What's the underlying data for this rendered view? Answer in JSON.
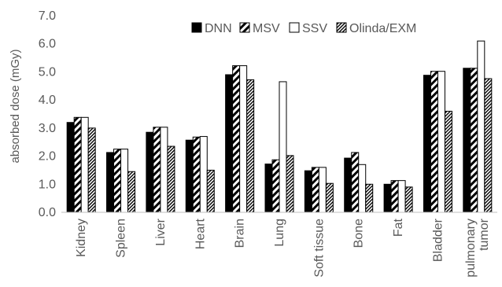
{
  "chart_data": {
    "type": "bar",
    "ylabel": "absorbed dose (mGy)",
    "ylim": [
      0,
      7
    ],
    "yticks": [
      "0.0",
      "1.0",
      "2.0",
      "3.0",
      "4.0",
      "5.0",
      "6.0",
      "7.0"
    ],
    "categories": [
      "Kidney",
      "Spleen",
      "Liver",
      "Heart",
      "Brain",
      "Lung",
      "Soft tissue",
      "Bone",
      "Fat",
      "Bladder",
      "pulmonary tumor"
    ],
    "category_lines": [
      [
        "Kidney"
      ],
      [
        "Spleen"
      ],
      [
        "Liver"
      ],
      [
        "Heart"
      ],
      [
        "Brain"
      ],
      [
        "Lung"
      ],
      [
        "Soft tissue"
      ],
      [
        "Bone"
      ],
      [
        "Fat"
      ],
      [
        "Bladder"
      ],
      [
        "pulmonary",
        "tumor"
      ]
    ],
    "legend_position": "top",
    "grid": false,
    "series": [
      {
        "name": "DNN",
        "pattern": "solid",
        "color": "#000000",
        "values": [
          3.2,
          2.13,
          2.85,
          2.57,
          4.9,
          1.72,
          1.48,
          1.93,
          1.0,
          4.88,
          5.13
        ]
      },
      {
        "name": "MSV",
        "pattern": "wide-diagonal",
        "color": "#000000",
        "values": [
          3.38,
          2.25,
          3.03,
          2.68,
          5.22,
          1.87,
          1.6,
          2.13,
          1.13,
          5.02,
          5.13
        ]
      },
      {
        "name": "SSV",
        "pattern": "hollow",
        "color": "#000000",
        "values": [
          3.38,
          2.25,
          3.03,
          2.7,
          5.22,
          4.65,
          1.6,
          1.7,
          1.13,
          5.02,
          6.1
        ]
      },
      {
        "name": "Olinda/EXM",
        "pattern": "fine-diagonal",
        "color": "#000000",
        "values": [
          3.0,
          1.45,
          2.35,
          1.5,
          4.72,
          2.02,
          1.03,
          1.0,
          0.9,
          3.6,
          4.76
        ]
      }
    ]
  }
}
